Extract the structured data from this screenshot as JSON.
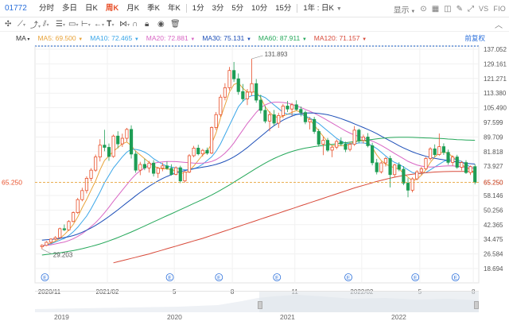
{
  "toolbar": {
    "code": "01772",
    "tabs": [
      "分时",
      "多日",
      "日K",
      "周K",
      "月K",
      "季K",
      "年K",
      "1分",
      "3分",
      "5分",
      "10分",
      "15分",
      "1年 : 日K"
    ],
    "active_tab": "周K",
    "right": [
      "显示",
      "VS",
      "FIO"
    ]
  },
  "legend": {
    "ma_label": "MA",
    "items": [
      {
        "name": "MA5",
        "value": "69.500",
        "color": "#e8a33a"
      },
      {
        "name": "MA10",
        "value": "72.465",
        "color": "#3aa6e8"
      },
      {
        "name": "MA20",
        "value": "72.881",
        "color": "#d866c4"
      },
      {
        "name": "MA30",
        "value": "75.131",
        "color": "#1d4fb8"
      },
      {
        "name": "MA60",
        "value": "87.911",
        "color": "#25a85a"
      },
      {
        "name": "MA120",
        "value": "71.157",
        "color": "#d84a3a"
      }
    ],
    "restore": "前复权"
  },
  "chart_data": {
    "type": "candlestick",
    "y_ticks": [
      "137.052",
      "129.161",
      "121.271",
      "113.380",
      "105.490",
      "97.599",
      "89.709",
      "81.818",
      "73.927",
      "65.250",
      "58.146",
      "50.256",
      "42.365",
      "34.475",
      "26.584",
      "18.694"
    ],
    "ylim": [
      18.694,
      137.052
    ],
    "x_ticks": [
      "2020/11",
      "2021/02",
      "5",
      "8",
      "11",
      "2022/02",
      "5",
      "8"
    ],
    "current_price": "65.250",
    "high_annotation": "131.893",
    "low_annotation": "29.203",
    "event_marker": "E",
    "candles": [
      [
        30.5,
        31.8,
        29.2,
        31.2
      ],
      [
        31.2,
        33.5,
        30.8,
        32.9
      ],
      [
        32.9,
        35.1,
        32.1,
        34.6
      ],
      [
        34.6,
        36.2,
        33.9,
        35.4
      ],
      [
        35.4,
        40.8,
        35.0,
        40.2
      ],
      [
        40.2,
        42.5,
        38.9,
        39.6
      ],
      [
        39.6,
        44.8,
        39.1,
        44.1
      ],
      [
        44.1,
        49.5,
        43.6,
        48.9
      ],
      [
        48.9,
        56.8,
        48.2,
        55.9
      ],
      [
        55.9,
        62.3,
        55.0,
        60.8
      ],
      [
        60.8,
        68.5,
        59.2,
        67.4
      ],
      [
        67.4,
        72.9,
        65.8,
        71.8
      ],
      [
        71.8,
        80.2,
        70.9,
        78.9
      ],
      [
        78.9,
        88.5,
        76.5,
        85.3
      ],
      [
        85.3,
        93.6,
        82.0,
        84.1
      ],
      [
        84.1,
        86.2,
        76.8,
        79.2
      ],
      [
        79.2,
        91.0,
        78.5,
        90.2
      ],
      [
        90.2,
        92.8,
        83.6,
        86.0
      ],
      [
        86.0,
        91.5,
        84.3,
        89.0
      ],
      [
        89.0,
        94.6,
        87.2,
        93.8
      ],
      [
        93.8,
        96.0,
        78.1,
        80.5
      ],
      [
        80.5,
        82.0,
        70.4,
        71.8
      ],
      [
        71.8,
        76.3,
        69.1,
        74.9
      ],
      [
        74.9,
        78.0,
        71.8,
        73.0
      ],
      [
        73.0,
        76.8,
        70.5,
        75.6
      ],
      [
        75.6,
        77.2,
        68.4,
        70.1
      ],
      [
        70.1,
        73.5,
        67.6,
        72.9
      ],
      [
        72.9,
        75.8,
        71.2,
        74.1
      ],
      [
        74.1,
        76.5,
        72.0,
        72.8
      ],
      [
        72.8,
        75.0,
        68.9,
        69.5
      ],
      [
        69.5,
        73.8,
        69.0,
        73.1
      ],
      [
        73.1,
        74.2,
        64.8,
        66.0
      ],
      [
        66.0,
        71.2,
        65.2,
        70.8
      ],
      [
        70.8,
        80.5,
        70.2,
        79.6
      ],
      [
        79.6,
        84.9,
        78.8,
        83.7
      ],
      [
        83.7,
        85.5,
        79.8,
        80.6
      ],
      [
        80.6,
        83.3,
        79.2,
        82.5
      ],
      [
        82.5,
        84.0,
        80.1,
        81.0
      ],
      [
        81.0,
        95.4,
        80.5,
        94.8
      ],
      [
        94.8,
        103.2,
        93.5,
        101.8
      ],
      [
        101.8,
        112.6,
        100.6,
        111.2
      ],
      [
        111.2,
        118.7,
        109.5,
        116.3
      ],
      [
        116.3,
        127.5,
        114.8,
        125.6
      ],
      [
        125.6,
        130.2,
        119.5,
        121.1
      ],
      [
        121.1,
        124.0,
        112.5,
        114.2
      ],
      [
        114.2,
        118.3,
        108.8,
        110.3
      ],
      [
        110.3,
        115.6,
        106.9,
        113.9
      ],
      [
        113.9,
        131.9,
        112.0,
        118.5
      ],
      [
        118.5,
        121.0,
        108.2,
        109.6
      ],
      [
        109.6,
        112.5,
        102.4,
        104.1
      ],
      [
        104.1,
        106.5,
        97.1,
        98.3
      ],
      [
        98.3,
        103.6,
        92.8,
        101.7
      ],
      [
        101.7,
        104.3,
        95.7,
        97.2
      ],
      [
        97.2,
        102.8,
        94.6,
        101.3
      ],
      [
        101.3,
        107.5,
        99.9,
        106.4
      ],
      [
        106.4,
        109.2,
        103.1,
        104.8
      ],
      [
        104.8,
        108.1,
        101.2,
        107.1
      ],
      [
        107.1,
        109.5,
        103.9,
        104.6
      ],
      [
        104.6,
        106.2,
        100.8,
        102.9
      ],
      [
        102.9,
        104.0,
        96.6,
        97.9
      ],
      [
        97.9,
        100.5,
        93.8,
        99.2
      ],
      [
        99.2,
        100.6,
        91.4,
        92.7
      ],
      [
        92.7,
        94.1,
        84.5,
        85.8
      ],
      [
        85.8,
        89.8,
        79.9,
        87.9
      ],
      [
        87.9,
        89.2,
        81.7,
        82.6
      ],
      [
        82.6,
        85.0,
        78.8,
        84.2
      ],
      [
        84.2,
        88.4,
        83.1,
        87.3
      ],
      [
        87.3,
        89.5,
        84.8,
        85.9
      ],
      [
        85.9,
        87.2,
        81.5,
        83.0
      ],
      [
        83.0,
        86.7,
        81.9,
        85.8
      ],
      [
        85.8,
        95.6,
        84.9,
        93.4
      ],
      [
        93.4,
        94.2,
        86.3,
        87.9
      ],
      [
        87.9,
        91.0,
        86.2,
        89.7
      ],
      [
        89.7,
        91.8,
        84.1,
        85.0
      ],
      [
        85.0,
        86.6,
        74.4,
        75.8
      ],
      [
        75.8,
        77.9,
        69.5,
        70.9
      ],
      [
        70.9,
        76.5,
        70.0,
        75.7
      ],
      [
        75.7,
        79.0,
        73.8,
        78.1
      ],
      [
        78.1,
        79.6,
        62.5,
        69.4
      ],
      [
        69.4,
        75.2,
        67.8,
        74.6
      ],
      [
        74.6,
        76.1,
        71.2,
        72.3
      ],
      [
        72.3,
        74.0,
        63.7,
        64.8
      ],
      [
        64.8,
        67.5,
        57.2,
        61.0
      ],
      [
        61.0,
        67.9,
        59.8,
        67.1
      ],
      [
        67.1,
        71.8,
        66.4,
        70.9
      ],
      [
        70.9,
        73.6,
        69.2,
        72.5
      ],
      [
        72.5,
        78.9,
        71.9,
        78.1
      ],
      [
        78.1,
        84.2,
        77.0,
        83.3
      ],
      [
        83.3,
        85.7,
        79.1,
        80.2
      ],
      [
        80.2,
        91.6,
        79.6,
        84.5
      ],
      [
        84.5,
        86.3,
        80.0,
        81.4
      ],
      [
        81.4,
        82.9,
        74.7,
        76.0
      ],
      [
        76.0,
        79.8,
        74.2,
        78.9
      ],
      [
        78.9,
        80.1,
        72.5,
        73.4
      ],
      [
        73.4,
        76.8,
        71.6,
        75.9
      ],
      [
        75.9,
        77.2,
        69.8,
        70.5
      ],
      [
        70.5,
        74.3,
        69.2,
        73.7
      ],
      [
        73.7,
        75.0,
        64.1,
        65.3
      ]
    ],
    "ma_series": {
      "MA5": [
        30.5,
        31.5,
        32.5,
        33.5,
        35,
        37,
        39.5,
        42.5,
        46.5,
        51.5,
        56,
        61,
        66,
        72,
        77,
        79.5,
        82,
        84,
        86,
        87,
        85,
        82,
        80,
        78,
        76,
        74,
        73,
        72.5,
        72.5,
        72,
        71.5,
        70.5,
        70,
        71.5,
        74,
        77,
        80,
        82,
        86,
        92,
        100,
        107,
        114,
        118,
        119,
        116,
        114,
        114,
        114,
        111,
        106,
        103,
        101,
        100,
        101,
        102,
        103,
        104,
        103,
        101,
        99,
        96,
        93,
        90,
        87,
        85,
        85,
        85,
        85,
        86,
        87,
        88,
        88,
        87,
        84,
        80,
        77,
        75,
        74,
        73,
        72.5,
        70,
        68,
        66,
        67,
        69,
        72,
        76,
        79,
        81,
        81.5,
        81,
        79,
        77,
        75,
        73,
        72,
        69.5
      ],
      "MA10": [
        31,
        31.5,
        32,
        33,
        34,
        35,
        36.5,
        38.5,
        41,
        44,
        47,
        51,
        55.5,
        60,
        65,
        69,
        73,
        76,
        79,
        81.5,
        83,
        83,
        82.5,
        81.5,
        80,
        78,
        76.5,
        75,
        74,
        73.5,
        73,
        72.5,
        72,
        72,
        72.5,
        73.5,
        75,
        77,
        79,
        82,
        86,
        91,
        96,
        101,
        106,
        109,
        111,
        112,
        112,
        112,
        111,
        109,
        107,
        105,
        103,
        102,
        102,
        102,
        102,
        101,
        100,
        98.5,
        97,
        95,
        93,
        91,
        89,
        87.5,
        86.5,
        86,
        86,
        86.5,
        86.5,
        86,
        85,
        83.5,
        81.5,
        79.5,
        77.5,
        76,
        75,
        73.5,
        72,
        70.5,
        70,
        70,
        70.5,
        72,
        73.5,
        75,
        76.5,
        77.5,
        78,
        77.5,
        76.5,
        75,
        73.5,
        72.5
      ],
      "MA20": [
        31,
        31.2,
        31.5,
        32,
        32.5,
        33,
        33.8,
        34.8,
        36,
        37.5,
        39.3,
        41.3,
        43.5,
        46,
        48.8,
        51.8,
        55,
        58,
        61,
        64,
        67,
        69.5,
        71.5,
        73,
        74.5,
        75.5,
        76,
        76.3,
        76.5,
        76.5,
        76.4,
        76.2,
        76,
        75.8,
        75.6,
        75.5,
        75.6,
        75.9,
        76.5,
        77.5,
        79,
        81,
        83.5,
        86.5,
        90,
        93.5,
        97,
        100,
        103,
        105.5,
        107,
        108,
        108.5,
        108.5,
        108.3,
        108,
        107.3,
        106.5,
        105.6,
        104.6,
        103.6,
        102.5,
        101.3,
        100,
        98.6,
        97.2,
        95.8,
        94.4,
        93,
        91.8,
        90.8,
        90,
        89.2,
        88.4,
        87.5,
        86.4,
        85.2,
        83.8,
        82.3,
        80.8,
        79.4,
        78,
        76.6,
        75.5,
        74.6,
        74,
        73.6,
        73.5,
        73.6,
        73.8,
        74,
        74.1,
        74.1,
        73.9,
        73.6,
        73.3,
        73,
        72.9
      ],
      "MA30": [
        34,
        34.2,
        34.4,
        34.7,
        35,
        35.4,
        35.9,
        36.5,
        37.3,
        38.3,
        39.4,
        40.6,
        42,
        43.5,
        45.1,
        46.8,
        48.6,
        50.4,
        52.3,
        54.2,
        56.1,
        58,
        59.8,
        61.5,
        63.1,
        64.6,
        66,
        67.3,
        68.4,
        69.4,
        70.3,
        71,
        71.6,
        72.1,
        72.6,
        73,
        73.4,
        73.8,
        74.3,
        74.9,
        75.7,
        76.6,
        77.7,
        79,
        80.5,
        82.2,
        84,
        86,
        88,
        90,
        92,
        94,
        95.8,
        97.4,
        98.8,
        100,
        101,
        101.8,
        102.3,
        102.6,
        102.7,
        102.6,
        102.4,
        102.1,
        101.7,
        101.1,
        100.4,
        99.6,
        98.7,
        97.8,
        96.8,
        95.8,
        94.8,
        93.8,
        92.7,
        91.5,
        90.2,
        88.9,
        87.6,
        86.3,
        85,
        83.8,
        82.7,
        81.7,
        80.8,
        80,
        79.3,
        78.7,
        78.2,
        77.8,
        77.4,
        77,
        76.6,
        76.2,
        75.8,
        75.5,
        75.3,
        75.1
      ],
      "MA60": [
        26,
        26.3,
        26.6,
        26.9,
        27.2,
        27.6,
        28,
        28.4,
        28.9,
        29.4,
        30,
        30.6,
        31.3,
        32,
        32.8,
        33.6,
        34.5,
        35.4,
        36.4,
        37.4,
        38.4,
        39.5,
        40.6,
        41.7,
        42.8,
        43.9,
        45,
        46.1,
        47.2,
        48.3,
        49.4,
        50.5,
        51.6,
        52.7,
        53.8,
        54.9,
        56,
        57.2,
        58.4,
        59.7,
        61,
        62.4,
        63.8,
        65.3,
        66.8,
        68.3,
        69.8,
        71.3,
        72.8,
        74.2,
        75.6,
        76.9,
        78.1,
        79.2,
        80.2,
        81.1,
        81.9,
        82.6,
        83.2,
        83.7,
        84.1,
        84.5,
        84.8,
        85.1,
        85.4,
        85.7,
        86,
        86.3,
        86.6,
        86.9,
        87.2,
        87.5,
        87.8,
        88.1,
        88.4,
        88.7,
        89,
        89.2,
        89.4,
        89.5,
        89.6,
        89.6,
        89.6,
        89.5,
        89.4,
        89.3,
        89.2,
        89.1,
        89,
        88.9,
        88.8,
        88.6,
        88.5,
        88.3,
        88.2,
        88.1,
        88,
        87.9
      ],
      "MA120": [
        null,
        null,
        null,
        null,
        null,
        null,
        null,
        null,
        null,
        null,
        null,
        null,
        null,
        null,
        null,
        null,
        21.8,
        22.4,
        23,
        23.6,
        24.2,
        24.8,
        25.4,
        26,
        26.6,
        27.3,
        28,
        28.7,
        29.4,
        30.1,
        30.8,
        31.5,
        32.2,
        32.9,
        33.6,
        34.3,
        35,
        35.8,
        36.6,
        37.4,
        38.2,
        39,
        39.8,
        40.6,
        41.4,
        42.2,
        43,
        43.8,
        44.6,
        45.4,
        46.2,
        47,
        47.8,
        48.6,
        49.4,
        50.2,
        51,
        51.8,
        52.6,
        53.4,
        54.2,
        55,
        55.8,
        56.6,
        57.4,
        58.2,
        59,
        59.8,
        60.6,
        61.4,
        62.2,
        62.9,
        63.6,
        64.3,
        65,
        65.7,
        66.3,
        66.9,
        67.5,
        68,
        68.5,
        68.9,
        69.3,
        69.6,
        69.9,
        70.2,
        70.4,
        70.6,
        70.8,
        70.9,
        71,
        71.05,
        71.1,
        71.12,
        71.14,
        71.15,
        71.16,
        71.157
      ]
    }
  },
  "navigator": {
    "labels": [
      "2019",
      "2020",
      "2021",
      "2022"
    ]
  }
}
